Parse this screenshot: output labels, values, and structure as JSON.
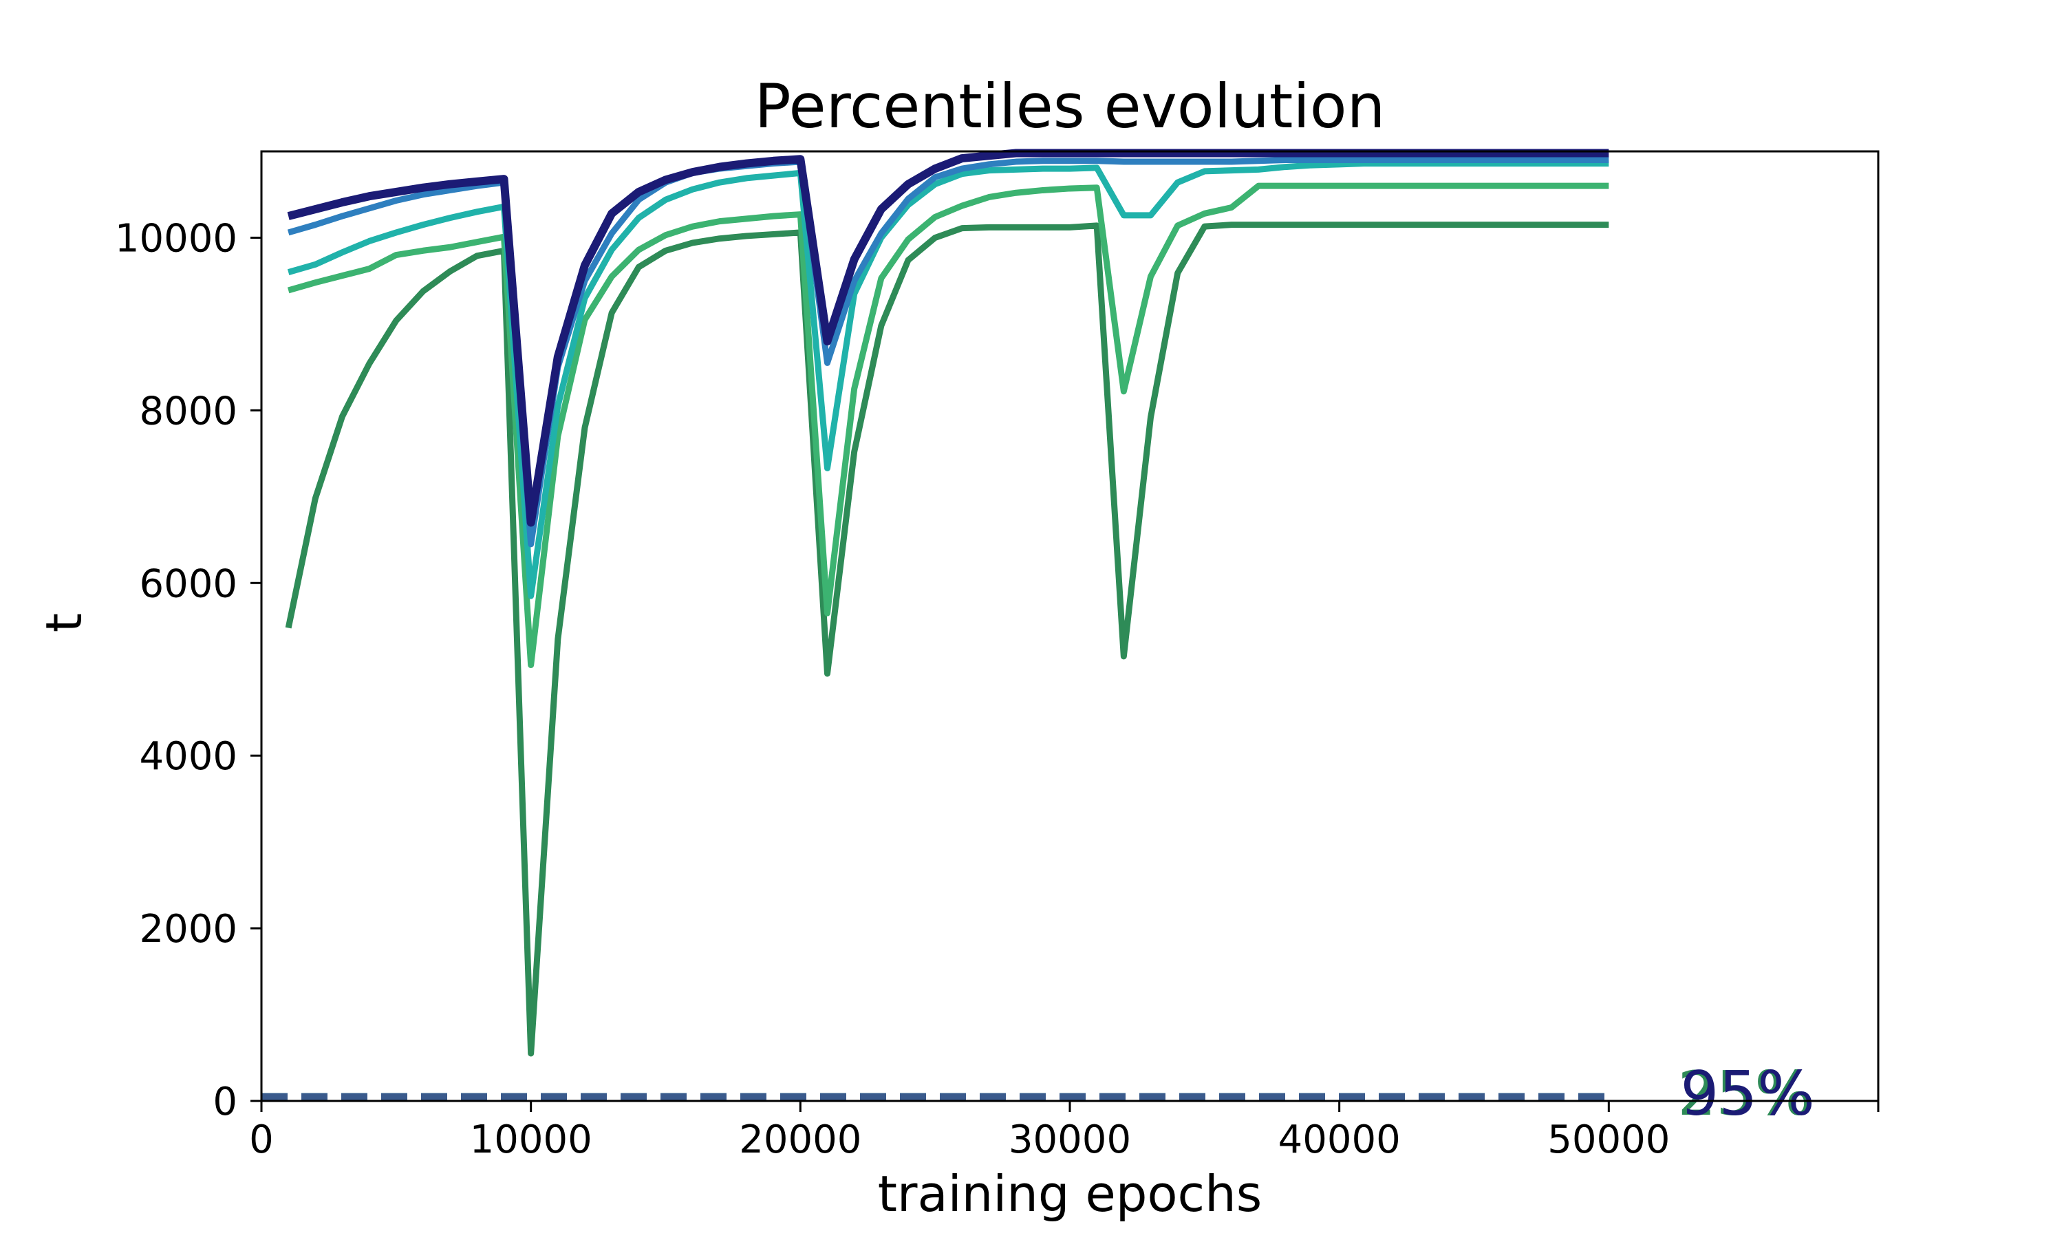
{
  "chart_data": {
    "type": "line",
    "title": "Percentiles evolution",
    "xlabel": "training epochs",
    "ylabel": "t",
    "xlim": [
      0,
      60000
    ],
    "ylim": [
      0,
      11000
    ],
    "xticks": [
      0,
      10000,
      20000,
      30000,
      40000,
      50000
    ],
    "yticks": [
      0,
      2000,
      4000,
      6000,
      8000,
      10000
    ],
    "x": [
      1000,
      2000,
      3000,
      4000,
      5000,
      6000,
      7000,
      8000,
      9000,
      10000,
      11000,
      12000,
      13000,
      14000,
      15000,
      16000,
      17000,
      18000,
      19000,
      20000,
      21000,
      22000,
      23000,
      24000,
      25000,
      26000,
      27000,
      28000,
      29000,
      30000,
      31000,
      32000,
      33000,
      34000,
      35000,
      36000,
      37000,
      38000,
      39000,
      40000,
      41000,
      42000,
      43000,
      44000,
      45000,
      46000,
      47000,
      48000,
      49000,
      50000
    ],
    "series": [
      {
        "color": "#2e8b57",
        "values": [
          5480,
          6980,
          7930,
          8540,
          9040,
          9380,
          9610,
          9790,
          9850,
          550,
          5350,
          7800,
          9130,
          9660,
          9850,
          9940,
          9990,
          10020,
          10040,
          10060,
          4950,
          7520,
          8980,
          9740,
          10000,
          10110,
          10120,
          10120,
          10120,
          10120,
          10140,
          5150,
          7920,
          9590,
          10130,
          10150,
          10150,
          10150,
          10150,
          10150,
          10150,
          10150,
          10150,
          10150,
          10150,
          10150,
          10150,
          10150,
          10150,
          10150
        ]
      },
      {
        "color": "#3cb371",
        "values": [
          9390,
          9480,
          9560,
          9640,
          9800,
          9850,
          9890,
          9950,
          10010,
          5050,
          7700,
          9050,
          9550,
          9860,
          10030,
          10130,
          10190,
          10220,
          10250,
          10270,
          5650,
          8250,
          9530,
          9980,
          10240,
          10370,
          10470,
          10520,
          10550,
          10570,
          10580,
          8220,
          9550,
          10140,
          10280,
          10350,
          10600,
          10600,
          10600,
          10600,
          10600,
          10600,
          10600,
          10600,
          10600,
          10600,
          10600,
          10600,
          10600,
          10600
        ]
      },
      {
        "color": "#20b2aa",
        "values": [
          9600,
          9690,
          9830,
          9960,
          10060,
          10150,
          10230,
          10300,
          10360,
          5850,
          8050,
          9300,
          9860,
          10230,
          10440,
          10560,
          10640,
          10690,
          10720,
          10750,
          7330,
          9350,
          10000,
          10380,
          10620,
          10740,
          10780,
          10790,
          10800,
          10800,
          10810,
          10260,
          10260,
          10640,
          10770,
          10780,
          10790,
          10820,
          10840,
          10850,
          10860,
          10860,
          10860,
          10860,
          10860,
          10860,
          10860,
          10860,
          10860,
          10860
        ]
      },
      {
        "color": "#2e7fbf",
        "values": [
          10060,
          10150,
          10250,
          10340,
          10430,
          10500,
          10550,
          10600,
          10640,
          6450,
          8500,
          9500,
          10050,
          10440,
          10640,
          10750,
          10800,
          10830,
          10860,
          10880,
          8550,
          9500,
          10050,
          10450,
          10700,
          10800,
          10850,
          10880,
          10890,
          10890,
          10890,
          10880,
          10880,
          10880,
          10880,
          10880,
          10890,
          10900,
          10900,
          10900,
          10900,
          10900,
          10900,
          10900,
          10900,
          10900,
          10900,
          10900,
          10900,
          10900
        ]
      },
      {
        "color": "#1b1b75",
        "values": [
          10250,
          10330,
          10410,
          10480,
          10530,
          10580,
          10620,
          10650,
          10680,
          6700,
          8620,
          9680,
          10280,
          10530,
          10670,
          10760,
          10820,
          10860,
          10890,
          10910,
          8800,
          9750,
          10330,
          10620,
          10800,
          10920,
          10950,
          10980,
          10980,
          10980,
          10980,
          10980,
          10980,
          10980,
          10980,
          10980,
          10980,
          10980,
          10980,
          10980,
          10980,
          10980,
          10980,
          10980,
          10980,
          10980,
          10980,
          10980,
          10980,
          10980
        ]
      }
    ],
    "baselines": [
      {
        "color": "#2e8b57",
        "value": 50
      },
      {
        "color": "#3cb371",
        "value": 50
      },
      {
        "color": "#20b2aa",
        "value": 50
      },
      {
        "color": "#2e7fbf",
        "value": 50
      },
      {
        "color": "#3a5a8c",
        "value": 50
      }
    ],
    "end_labels": [
      {
        "text": "25%",
        "color": "#2e8b57"
      },
      {
        "text": "95%",
        "color": "#1b1b75"
      }
    ]
  }
}
